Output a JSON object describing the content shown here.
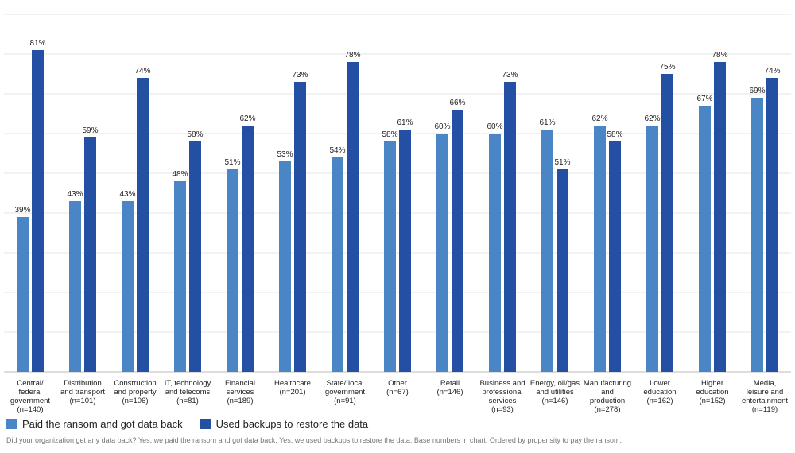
{
  "chart_data": {
    "type": "bar",
    "categories": [
      [
        "Central/",
        "federal",
        "government",
        "(n=140)"
      ],
      [
        "Distribution",
        "and transport",
        "(n=101)"
      ],
      [
        "Construction",
        "and property",
        "(n=106)"
      ],
      [
        "IT, technology",
        "and telecoms",
        "(n=81)"
      ],
      [
        "Financial",
        "services",
        "(n=189)"
      ],
      [
        "Healthcare",
        "(n=201)"
      ],
      [
        "State/ local",
        "government",
        "(n=91)"
      ],
      [
        "Other",
        "(n=67)"
      ],
      [
        "Retail",
        "(n=146)"
      ],
      [
        "Business and",
        "professional",
        "services",
        "(n=93)"
      ],
      [
        "Energy, oil/gas",
        "and utilities",
        "(n=146)"
      ],
      [
        "Manufacturing",
        "and",
        "production",
        "(n=278)"
      ],
      [
        "Lower",
        "education",
        "(n=162)"
      ],
      [
        "Higher",
        "education",
        "(n=152)"
      ],
      [
        "Media,",
        "leisure and",
        "entertainment",
        "(n=119)"
      ]
    ],
    "series": [
      {
        "name": "Paid the ransom and got data back",
        "color": "#4a86c6",
        "values": [
          39,
          43,
          43,
          48,
          51,
          53,
          54,
          58,
          60,
          60,
          61,
          62,
          62,
          67,
          69
        ]
      },
      {
        "name": "Used backups to restore the data",
        "color": "#2450a4",
        "values": [
          81,
          59,
          74,
          58,
          62,
          73,
          78,
          61,
          66,
          73,
          51,
          58,
          75,
          78,
          74
        ]
      }
    ],
    "ylim": [
      0,
      90
    ],
    "grid": true,
    "legend_position": "bottom-left",
    "value_suffix": "%"
  },
  "footnote": "Did your organization get any data back? Yes, we paid the ransom and got data back; Yes, we used backups to restore the data. Base numbers in chart. Ordered by propensity to pay the ransom."
}
